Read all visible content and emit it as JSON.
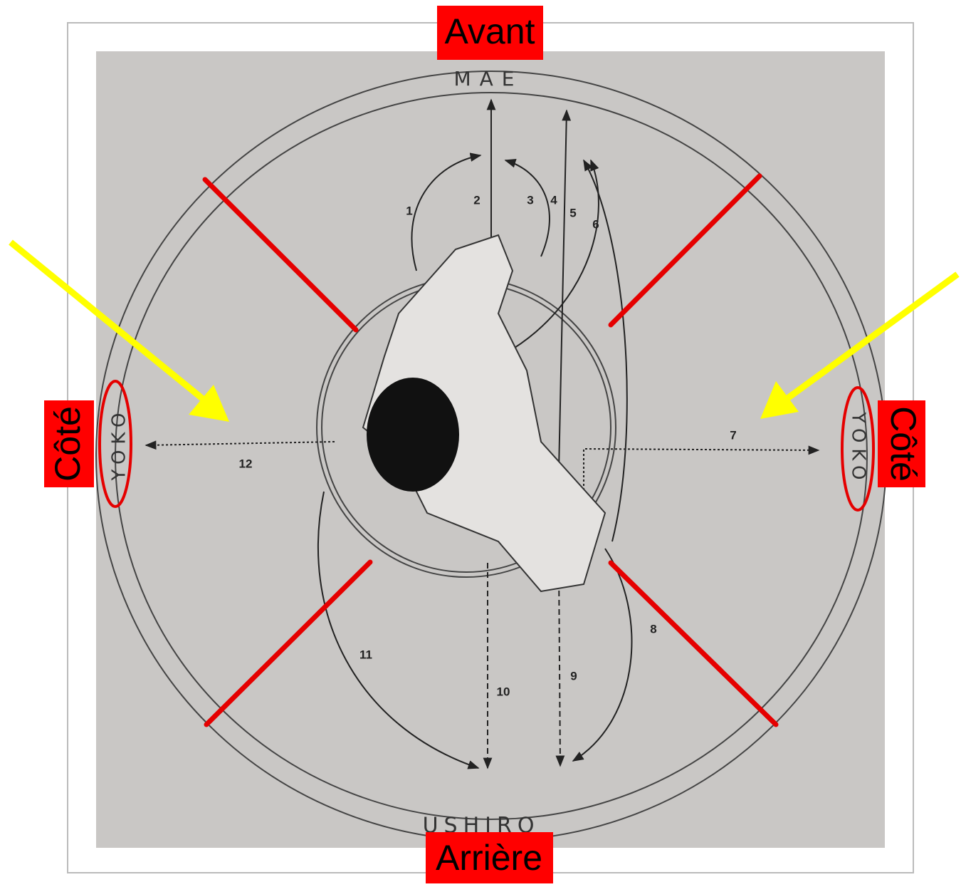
{
  "labels": {
    "front": "Avant",
    "back": "Arrière",
    "side_left": "Côté",
    "side_right": "Côté"
  },
  "diagram": {
    "top": "MAE",
    "bottom": "USHIRO",
    "left": "YOKO",
    "right": "YOKO",
    "numbers": [
      "1",
      "2",
      "3",
      "4",
      "5",
      "6",
      "7",
      "8",
      "9",
      "10",
      "11",
      "12"
    ]
  }
}
